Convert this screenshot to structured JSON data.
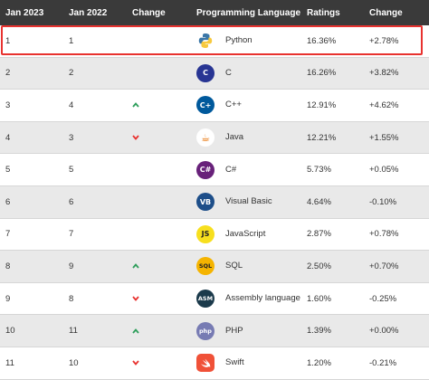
{
  "columns": [
    "Jan 2023",
    "Jan 2022",
    "Change",
    "Programming Language",
    "Ratings",
    "Change"
  ],
  "rows": [
    {
      "jan2023": "1",
      "jan2022": "1",
      "trend": "none",
      "icon": "python-logo-icon",
      "icon_text": "",
      "icon_bg": "#ffffff",
      "language": "Python",
      "rating": "16.36%",
      "change": "+2.78%"
    },
    {
      "jan2023": "2",
      "jan2022": "2",
      "trend": "none",
      "icon": "c-logo-icon",
      "icon_text": "C",
      "icon_bg": "#283593",
      "language": "C",
      "rating": "16.26%",
      "change": "+3.82%"
    },
    {
      "jan2023": "3",
      "jan2022": "4",
      "trend": "up",
      "icon": "cpp-logo-icon",
      "icon_text": "C+",
      "icon_bg": "#00599c",
      "language": "C++",
      "rating": "12.91%",
      "change": "+4.62%"
    },
    {
      "jan2023": "4",
      "jan2022": "3",
      "trend": "down",
      "icon": "java-logo-icon",
      "icon_text": "☕",
      "icon_bg": "#ffffff",
      "language": "Java",
      "rating": "12.21%",
      "change": "+1.55%"
    },
    {
      "jan2023": "5",
      "jan2022": "5",
      "trend": "none",
      "icon": "csharp-logo-icon",
      "icon_text": "C#",
      "icon_bg": "#68217a",
      "language": "C#",
      "rating": "5.73%",
      "change": "+0.05%"
    },
    {
      "jan2023": "6",
      "jan2022": "6",
      "trend": "none",
      "icon": "visual-basic-logo-icon",
      "icon_text": "VB",
      "icon_bg": "#1d4e89",
      "language": "Visual Basic",
      "rating": "4.64%",
      "change": "-0.10%"
    },
    {
      "jan2023": "7",
      "jan2022": "7",
      "trend": "none",
      "icon": "javascript-logo-icon",
      "icon_text": "JS",
      "icon_bg": "#f7df1e",
      "language": "JavaScript",
      "rating": "2.87%",
      "change": "+0.78%"
    },
    {
      "jan2023": "8",
      "jan2022": "9",
      "trend": "up",
      "icon": "sql-logo-icon",
      "icon_text": "SQL",
      "icon_bg": "#f5b400",
      "language": "SQL",
      "rating": "2.50%",
      "change": "+0.70%"
    },
    {
      "jan2023": "9",
      "jan2022": "8",
      "trend": "down",
      "icon": "assembly-logo-icon",
      "icon_text": "ASM",
      "icon_bg": "#1b3a4b",
      "language": "Assembly language",
      "rating": "1.60%",
      "change": "-0.25%"
    },
    {
      "jan2023": "10",
      "jan2022": "11",
      "trend": "up",
      "icon": "php-logo-icon",
      "icon_text": "php",
      "icon_bg": "#777bb3",
      "language": "PHP",
      "rating": "1.39%",
      "change": "+0.00%"
    },
    {
      "jan2023": "11",
      "jan2022": "10",
      "trend": "down",
      "icon": "swift-logo-icon",
      "icon_text": "",
      "icon_bg": "#f05138",
      "language": "Swift",
      "rating": "1.20%",
      "change": "-0.21%"
    }
  ],
  "colors": {
    "up": "#2e9e5b",
    "down": "#e8322f",
    "highlight": "#e8322f",
    "header_bg": "#3a3a3a"
  }
}
